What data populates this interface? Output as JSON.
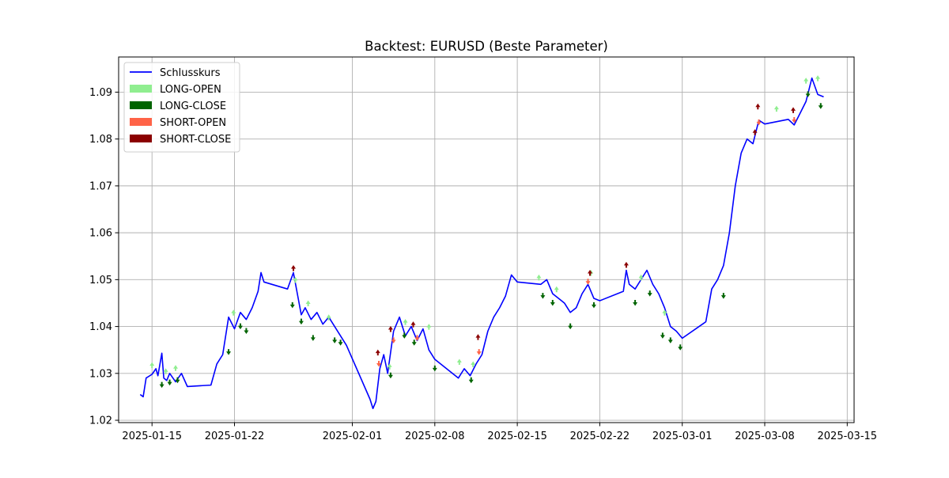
{
  "chart_data": {
    "type": "line",
    "title": "Backtest: EURUSD (Beste Parameter)",
    "xlabel": "",
    "ylabel": "",
    "x_is_date": true,
    "xlim": [
      "2025-01-12T04:00",
      "2025-03-15T14:00"
    ],
    "ylim": [
      1.0195,
      1.0975
    ],
    "xticks": [
      "2025-01-15",
      "2025-01-22",
      "2025-02-01",
      "2025-02-08",
      "2025-02-15",
      "2025-02-22",
      "2025-03-01",
      "2025-03-08",
      "2025-03-15"
    ],
    "yticks": [
      1.02,
      1.03,
      1.04,
      1.05,
      1.06,
      1.07,
      1.08,
      1.09
    ],
    "ytick_labels": [
      "1.02",
      "1.03",
      "1.04",
      "1.05",
      "1.06",
      "1.07",
      "1.08",
      "1.09"
    ],
    "grid": true,
    "legend_position": "upper-left",
    "series": [
      {
        "name": "Schlusskurs",
        "color": "#0000ff",
        "x": [
          "2025-01-14T00:00",
          "2025-01-14T06:00",
          "2025-01-14T12:00",
          "2025-01-15T00:00",
          "2025-01-15T08:00",
          "2025-01-15T12:00",
          "2025-01-15T20:00",
          "2025-01-16T00:00",
          "2025-01-16T06:00",
          "2025-01-16T12:00",
          "2025-01-17T00:00",
          "2025-01-17T12:00",
          "2025-01-18T00:00",
          "2025-01-20T00:00",
          "2025-01-20T12:00",
          "2025-01-21T00:00",
          "2025-01-21T12:00",
          "2025-01-22T00:00",
          "2025-01-22T12:00",
          "2025-01-23T00:00",
          "2025-01-23T12:00",
          "2025-01-24T00:00",
          "2025-01-24T06:00",
          "2025-01-24T12:00",
          "2025-01-26T12:00",
          "2025-01-27T00:00",
          "2025-01-27T08:00",
          "2025-01-27T16:00",
          "2025-01-28T00:00",
          "2025-01-28T12:00",
          "2025-01-29T00:00",
          "2025-01-29T12:00",
          "2025-01-30T00:00",
          "2025-01-30T12:00",
          "2025-01-31T00:00",
          "2025-01-31T12:00",
          "2025-02-02T12:00",
          "2025-02-02T18:00",
          "2025-02-03T00:00",
          "2025-02-03T08:00",
          "2025-02-03T16:00",
          "2025-02-04T00:00",
          "2025-02-04T12:00",
          "2025-02-05T00:00",
          "2025-02-05T12:00",
          "2025-02-06T00:00",
          "2025-02-06T12:00",
          "2025-02-07T00:00",
          "2025-02-07T12:00",
          "2025-02-08T00:00",
          "2025-02-10T00:00",
          "2025-02-10T12:00",
          "2025-02-11T00:00",
          "2025-02-11T12:00",
          "2025-02-12T00:00",
          "2025-02-12T12:00",
          "2025-02-13T00:00",
          "2025-02-13T12:00",
          "2025-02-14T00:00",
          "2025-02-14T12:00",
          "2025-02-15T00:00",
          "2025-02-17T00:00",
          "2025-02-17T12:00",
          "2025-02-18T00:00",
          "2025-02-18T12:00",
          "2025-02-19T00:00",
          "2025-02-19T12:00",
          "2025-02-20T00:00",
          "2025-02-20T12:00",
          "2025-02-21T00:00",
          "2025-02-21T12:00",
          "2025-02-22T00:00",
          "2025-02-24T00:00",
          "2025-02-24T06:00",
          "2025-02-24T12:00",
          "2025-02-25T00:00",
          "2025-02-25T12:00",
          "2025-02-26T00:00",
          "2025-02-26T12:00",
          "2025-02-27T00:00",
          "2025-02-27T12:00",
          "2025-02-28T00:00",
          "2025-02-28T12:00",
          "2025-03-01T00:00",
          "2025-03-03T00:00",
          "2025-03-03T12:00",
          "2025-03-04T00:00",
          "2025-03-04T12:00",
          "2025-03-05T00:00",
          "2025-03-05T12:00",
          "2025-03-06T00:00",
          "2025-03-06T12:00",
          "2025-03-07T00:00",
          "2025-03-07T12:00",
          "2025-03-08T00:00",
          "2025-03-10T00:00",
          "2025-03-10T12:00",
          "2025-03-11T00:00",
          "2025-03-11T12:00",
          "2025-03-12T00:00",
          "2025-03-12T12:00",
          "2025-03-13T00:00"
        ],
        "y": [
          1.0255,
          1.025,
          1.029,
          1.0298,
          1.031,
          1.0295,
          1.0343,
          1.029,
          1.0285,
          1.03,
          1.0282,
          1.03,
          1.0272,
          1.0275,
          1.032,
          1.034,
          1.042,
          1.0395,
          1.043,
          1.0415,
          1.044,
          1.0475,
          1.0515,
          1.0495,
          1.048,
          1.0515,
          1.047,
          1.0425,
          1.044,
          1.0415,
          1.043,
          1.0405,
          1.042,
          1.04,
          1.038,
          1.036,
          1.0245,
          1.0225,
          1.024,
          1.031,
          1.034,
          1.03,
          1.039,
          1.042,
          1.038,
          1.04,
          1.037,
          1.0395,
          1.035,
          1.033,
          1.029,
          1.031,
          1.0295,
          1.032,
          1.034,
          1.039,
          1.042,
          1.044,
          1.0465,
          1.051,
          1.0495,
          1.049,
          1.05,
          1.047,
          1.046,
          1.045,
          1.043,
          1.044,
          1.047,
          1.049,
          1.046,
          1.0455,
          1.0475,
          1.052,
          1.049,
          1.048,
          1.05,
          1.052,
          1.049,
          1.047,
          1.044,
          1.04,
          1.039,
          1.0375,
          1.041,
          1.048,
          1.05,
          1.053,
          1.06,
          1.07,
          1.077,
          1.08,
          1.079,
          1.084,
          1.0832,
          1.0842,
          1.083,
          1.0855,
          1.088,
          1.093,
          1.0895,
          1.089
        ]
      }
    ],
    "markers": [
      {
        "name": "LONG-OPEN",
        "color": "#90ee90",
        "direction": "up",
        "points": [
          [
            "2025-01-15T00:00",
            1.0318
          ],
          [
            "2025-01-16T04:00",
            1.0305
          ],
          [
            "2025-01-17T00:00",
            1.0312
          ],
          [
            "2025-01-21T22:00",
            1.043
          ],
          [
            "2025-01-27T04:00",
            1.05
          ],
          [
            "2025-01-28T06:00",
            1.045
          ],
          [
            "2025-01-30T00:00",
            1.042
          ],
          [
            "2025-02-04T04:00",
            1.0315
          ],
          [
            "2025-02-05T12:00",
            1.041
          ],
          [
            "2025-02-07T12:00",
            1.04
          ],
          [
            "2025-02-10T02:00",
            1.0325
          ],
          [
            "2025-02-11T06:00",
            1.032
          ],
          [
            "2025-02-16T20:00",
            1.0505
          ],
          [
            "2025-02-18T08:00",
            1.048
          ],
          [
            "2025-02-21T06:00",
            1.0515
          ],
          [
            "2025-02-25T12:00",
            1.0505
          ],
          [
            "2025-02-27T12:00",
            1.043
          ],
          [
            "2025-03-09T00:00",
            1.0865
          ],
          [
            "2025-03-11T12:00",
            1.0925
          ],
          [
            "2025-03-12T12:00",
            1.093
          ]
        ]
      },
      {
        "name": "LONG-CLOSE",
        "color": "#006400",
        "direction": "down",
        "points": [
          [
            "2025-01-15T20:00",
            1.0275
          ],
          [
            "2025-01-16T12:00",
            1.028
          ],
          [
            "2025-01-17T04:00",
            1.0285
          ],
          [
            "2025-01-21T12:00",
            1.0345
          ],
          [
            "2025-01-22T12:00",
            1.04
          ],
          [
            "2025-01-23T00:00",
            1.039
          ],
          [
            "2025-01-26T22:00",
            1.0445
          ],
          [
            "2025-01-27T16:00",
            1.041
          ],
          [
            "2025-01-28T16:00",
            1.0375
          ],
          [
            "2025-01-30T12:00",
            1.037
          ],
          [
            "2025-01-31T00:00",
            1.0365
          ],
          [
            "2025-02-04T06:00",
            1.0295
          ],
          [
            "2025-02-05T10:00",
            1.038
          ],
          [
            "2025-02-06T06:00",
            1.0365
          ],
          [
            "2025-02-08T00:00",
            1.031
          ],
          [
            "2025-02-11T02:00",
            1.0285
          ],
          [
            "2025-02-17T04:00",
            1.0465
          ],
          [
            "2025-02-18T00:00",
            1.045
          ],
          [
            "2025-02-19T12:00",
            1.04
          ],
          [
            "2025-02-21T12:00",
            1.0445
          ],
          [
            "2025-02-25T00:00",
            1.045
          ],
          [
            "2025-02-26T06:00",
            1.047
          ],
          [
            "2025-02-27T08:00",
            1.038
          ],
          [
            "2025-02-28T00:00",
            1.037
          ],
          [
            "2025-02-28T20:00",
            1.0355
          ],
          [
            "2025-03-04T12:00",
            1.0465
          ],
          [
            "2025-03-11T16:00",
            1.0895
          ],
          [
            "2025-03-12T18:00",
            1.087
          ]
        ]
      },
      {
        "name": "SHORT-OPEN",
        "color": "#ff6347",
        "direction": "down",
        "points": [
          [
            "2025-02-03T06:00",
            1.032
          ],
          [
            "2025-02-04T12:00",
            1.037
          ],
          [
            "2025-02-06T12:00",
            1.0375
          ],
          [
            "2025-02-11T18:00",
            1.0345
          ],
          [
            "2025-02-21T00:00",
            1.0495
          ],
          [
            "2025-03-07T12:00",
            1.0835
          ],
          [
            "2025-03-10T12:00",
            1.084
          ]
        ]
      },
      {
        "name": "SHORT-CLOSE",
        "color": "#8b0000",
        "direction": "up",
        "points": [
          [
            "2025-01-27T00:00",
            1.0525
          ],
          [
            "2025-02-03T04:00",
            1.0345
          ],
          [
            "2025-02-04T06:00",
            1.0395
          ],
          [
            "2025-02-06T04:00",
            1.0405
          ],
          [
            "2025-02-11T16:00",
            1.0378
          ],
          [
            "2025-02-21T04:00",
            1.0515
          ],
          [
            "2025-02-24T06:00",
            1.0532
          ],
          [
            "2025-03-07T04:00",
            1.0815
          ],
          [
            "2025-03-07T10:00",
            1.087
          ],
          [
            "2025-03-10T10:00",
            1.0862
          ]
        ]
      }
    ]
  }
}
